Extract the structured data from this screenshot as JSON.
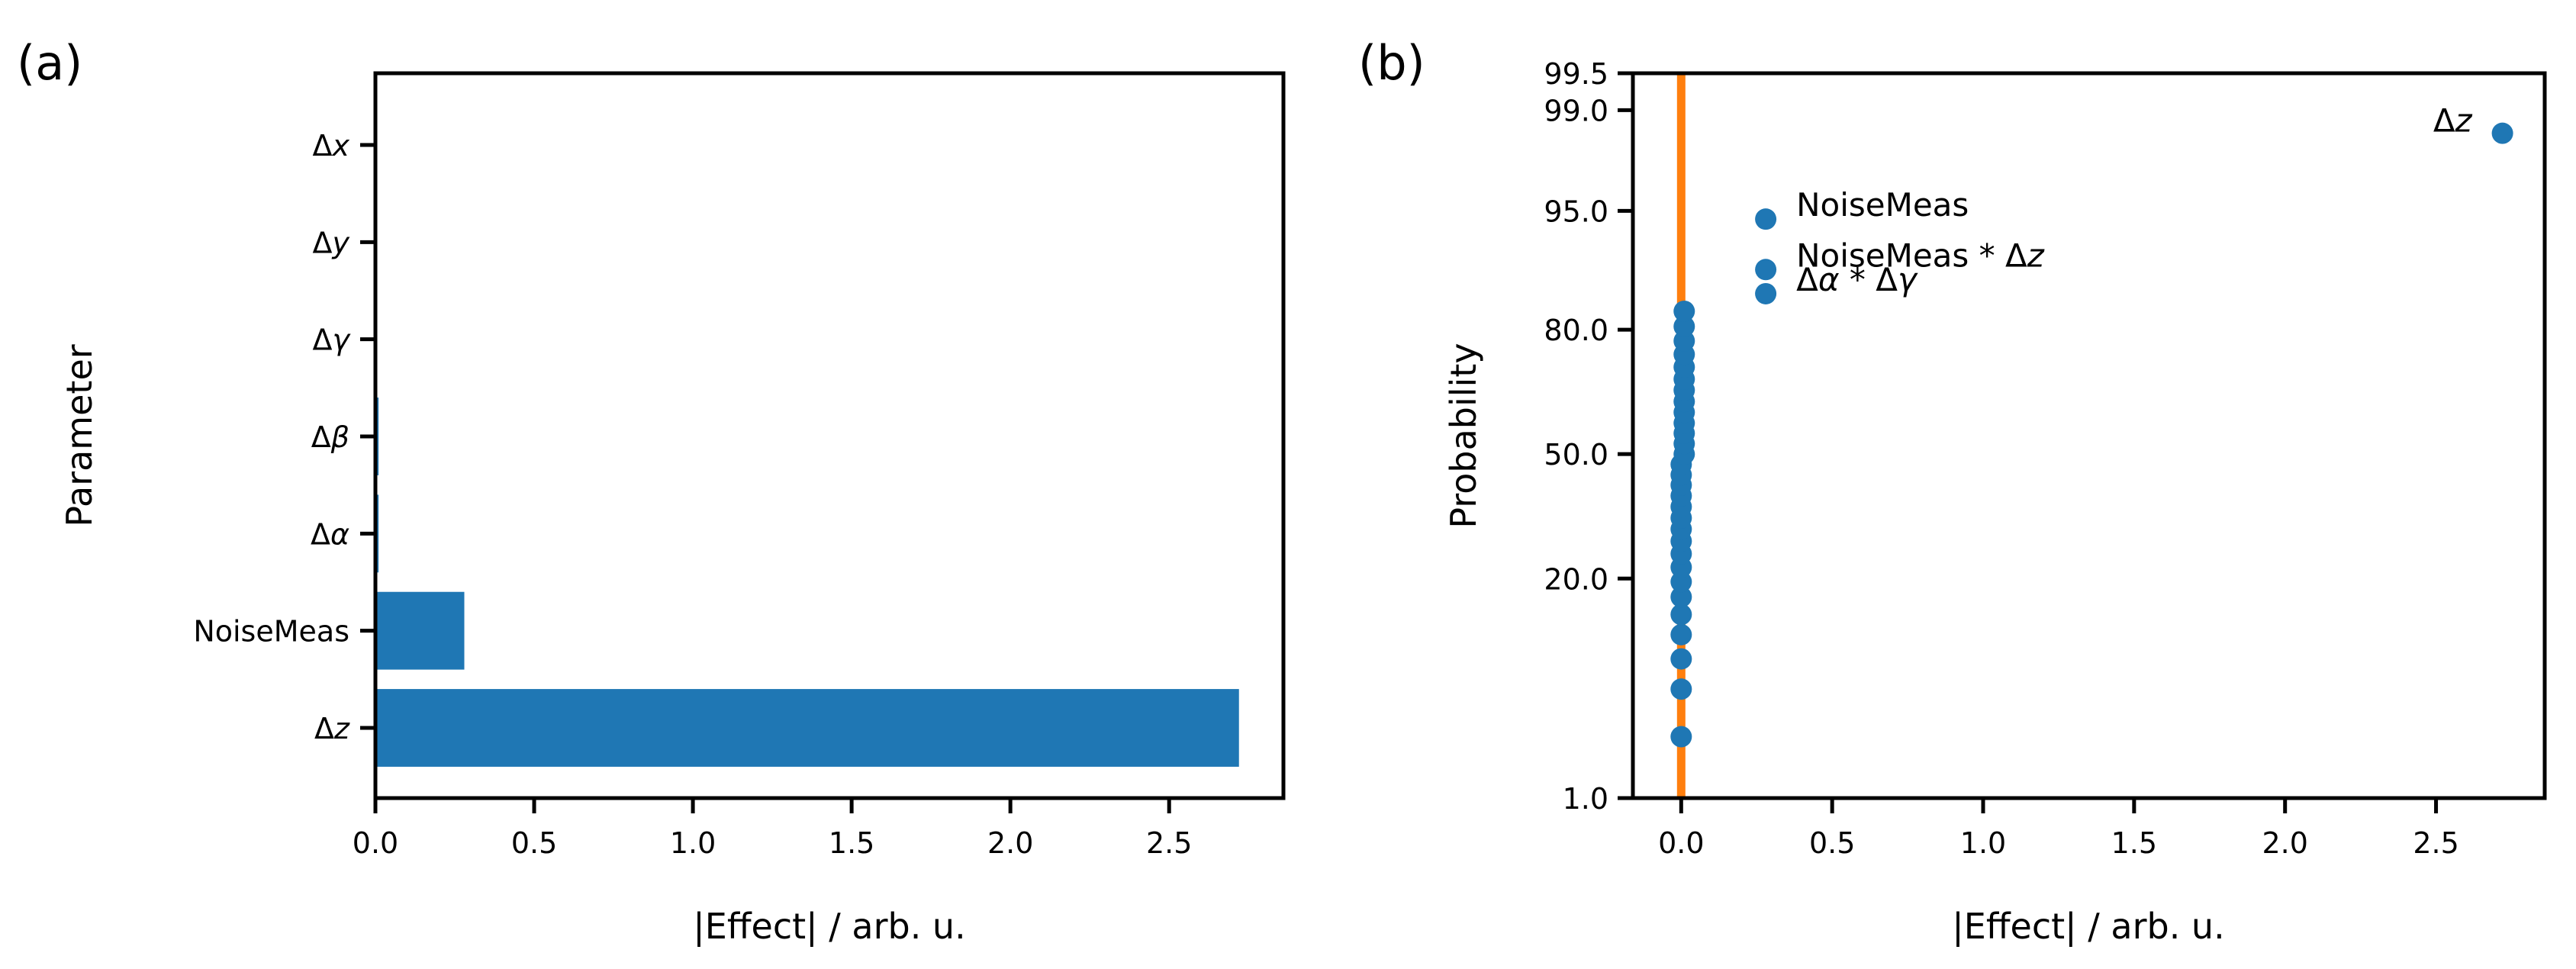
{
  "chart_data": [
    {
      "panel_label": "(a)",
      "type": "bar",
      "orientation": "horizontal",
      "categories": [
        "Δx",
        "Δy",
        "Δγ",
        "Δβ",
        "Δα",
        "NoiseMeas",
        "Δz"
      ],
      "category_label_parts": [
        [
          {
            "t": "Δ",
            "i": false
          },
          {
            "t": "x",
            "i": true
          }
        ],
        [
          {
            "t": "Δ",
            "i": false
          },
          {
            "t": "y",
            "i": true
          }
        ],
        [
          {
            "t": "Δ",
            "i": false
          },
          {
            "t": "γ",
            "i": true
          }
        ],
        [
          {
            "t": "Δ",
            "i": false
          },
          {
            "t": "β",
            "i": true
          }
        ],
        [
          {
            "t": "Δ",
            "i": false
          },
          {
            "t": "α",
            "i": true
          }
        ],
        [
          {
            "t": "NoiseMeas",
            "i": false
          }
        ],
        [
          {
            "t": "Δ",
            "i": false
          },
          {
            "t": "z",
            "i": true
          }
        ]
      ],
      "values": [
        0.0,
        0.0,
        0.0,
        0.01,
        0.01,
        0.28,
        2.72
      ],
      "xlabel": "|Effect| / arb. u.",
      "ylabel": "Parameter",
      "xlim": [
        0.0,
        2.86
      ],
      "xticks": [
        0.0,
        0.5,
        1.0,
        1.5,
        2.0,
        2.5
      ],
      "xtick_labels": [
        "0.0",
        "0.5",
        "1.0",
        "1.5",
        "2.0",
        "2.5"
      ],
      "bar_color": "#1f77b4",
      "grid": false
    },
    {
      "panel_label": "(b)",
      "type": "scatter",
      "subtype": "normal probability plot",
      "xlabel": "|Effect| / arb. u.",
      "ylabel": "Probability",
      "xlim": [
        -0.16,
        2.86
      ],
      "xticks": [
        0.0,
        0.5,
        1.0,
        1.5,
        2.0,
        2.5
      ],
      "xtick_labels": [
        "0.0",
        "0.5",
        "1.0",
        "1.5",
        "2.0",
        "2.5"
      ],
      "yscale": "probability",
      "ylim": [
        1.0,
        99.5
      ],
      "yticks": [
        1.0,
        20.0,
        50.0,
        80.0,
        95.0,
        99.0,
        99.5
      ],
      "ytick_labels": [
        "1.0",
        "20.0",
        "50.0",
        "80.0",
        "95.0",
        "99.0",
        "99.5"
      ],
      "points": [
        {
          "x": 0.0,
          "y": 2.8
        },
        {
          "x": 0.0,
          "y": 5.6
        },
        {
          "x": 0.0,
          "y": 8.3
        },
        {
          "x": 0.0,
          "y": 11.1
        },
        {
          "x": 0.0,
          "y": 13.9
        },
        {
          "x": 0.0,
          "y": 16.7
        },
        {
          "x": 0.0,
          "y": 19.4
        },
        {
          "x": 0.0,
          "y": 22.2
        },
        {
          "x": 0.0,
          "y": 25.0
        },
        {
          "x": 0.0,
          "y": 27.8
        },
        {
          "x": 0.0,
          "y": 30.6
        },
        {
          "x": 0.0,
          "y": 33.3
        },
        {
          "x": 0.0,
          "y": 36.1
        },
        {
          "x": 0.0,
          "y": 38.9
        },
        {
          "x": 0.0,
          "y": 41.7
        },
        {
          "x": 0.0,
          "y": 44.4
        },
        {
          "x": 0.0,
          "y": 47.2
        },
        {
          "x": 0.01,
          "y": 50.0
        },
        {
          "x": 0.01,
          "y": 52.8
        },
        {
          "x": 0.01,
          "y": 55.6
        },
        {
          "x": 0.01,
          "y": 58.3
        },
        {
          "x": 0.01,
          "y": 61.1
        },
        {
          "x": 0.01,
          "y": 63.9
        },
        {
          "x": 0.01,
          "y": 66.7
        },
        {
          "x": 0.01,
          "y": 69.4
        },
        {
          "x": 0.01,
          "y": 72.2
        },
        {
          "x": 0.01,
          "y": 75.0
        },
        {
          "x": 0.01,
          "y": 77.8
        },
        {
          "x": 0.01,
          "y": 80.6
        },
        {
          "x": 0.01,
          "y": 83.3
        },
        {
          "x": 0.28,
          "y": 86.1
        },
        {
          "x": 0.28,
          "y": 89.4
        },
        {
          "x": 0.28,
          "y": 94.4
        },
        {
          "x": 2.72,
          "y": 98.5
        }
      ],
      "annotations": [
        {
          "x": 2.72,
          "y": 98.5,
          "position": "left",
          "parts": [
            {
              "t": "Δ",
              "i": false
            },
            {
              "t": "z",
              "i": true
            }
          ]
        },
        {
          "x": 0.28,
          "y": 94.4,
          "position": "right",
          "parts": [
            {
              "t": "NoiseMeas",
              "i": false
            }
          ]
        },
        {
          "x": 0.28,
          "y": 89.4,
          "position": "right",
          "parts": [
            {
              "t": "NoiseMeas * Δ",
              "i": false
            },
            {
              "t": "z",
              "i": true
            }
          ]
        },
        {
          "x": 0.28,
          "y": 86.1,
          "position": "right",
          "parts": [
            {
              "t": "Δ",
              "i": false
            },
            {
              "t": "α",
              "i": true
            },
            {
              "t": " * Δ",
              "i": false
            },
            {
              "t": "γ",
              "i": true
            }
          ]
        }
      ],
      "vline": {
        "x": 0.0,
        "color": "#ff7f0e"
      },
      "point_color": "#1f77b4",
      "grid": false
    }
  ]
}
